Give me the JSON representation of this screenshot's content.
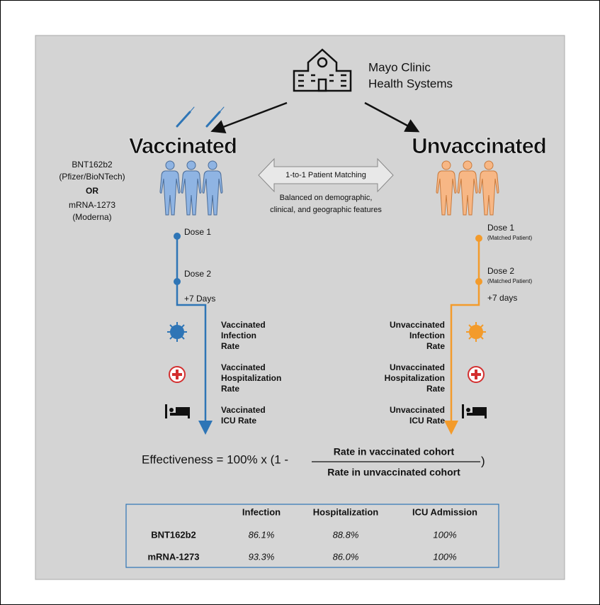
{
  "header": {
    "organization": [
      "Mayo Clinic",
      "Health Systems"
    ]
  },
  "vaccinated": {
    "title": "Vaccinated",
    "vaccines": [
      "BNT162b2",
      "(Pfizer/BioNTech)",
      "OR",
      "mRNA-1273",
      "(Moderna)"
    ],
    "timeline": [
      "Dose 1",
      "Dose 2",
      "+7 Days"
    ],
    "outcomes": [
      [
        "Vaccinated",
        "Infection",
        "Rate"
      ],
      [
        "Vaccinated",
        "Hospitalization",
        "Rate"
      ],
      [
        "Vaccinated",
        "ICU Rate"
      ]
    ]
  },
  "matching": {
    "label": "1-to-1 Patient Matching",
    "note": [
      "Balanced on demographic,",
      "clinical, and geographic features"
    ]
  },
  "unvaccinated": {
    "title": "Unvaccinated",
    "timeline": [
      {
        "label": "Dose 1",
        "note": "(Matched Patient)"
      },
      {
        "label": "Dose 2",
        "note": "(Matched Patient)"
      },
      {
        "label": "+7 days"
      }
    ],
    "outcomes": [
      [
        "Unvaccinated",
        "Infection",
        "Rate"
      ],
      [
        "Unvaccinated",
        "Hospitalization",
        "Rate"
      ],
      [
        "Unvaccinated",
        "ICU Rate"
      ]
    ]
  },
  "formula": {
    "lhs": "Effectiveness = 100% x (1 -",
    "numerator": "Rate in vaccinated cohort",
    "denominator": "Rate in unvaccinated cohort",
    "close": ")"
  },
  "table": {
    "columns": [
      "Infection",
      "Hospitalization",
      "ICU Admission"
    ],
    "rows": [
      [
        "BNT162b2",
        "86.1%",
        "88.8%",
        "100%"
      ],
      [
        "mRNA-1273",
        "93.3%",
        "86.0%",
        "100%"
      ]
    ]
  }
}
